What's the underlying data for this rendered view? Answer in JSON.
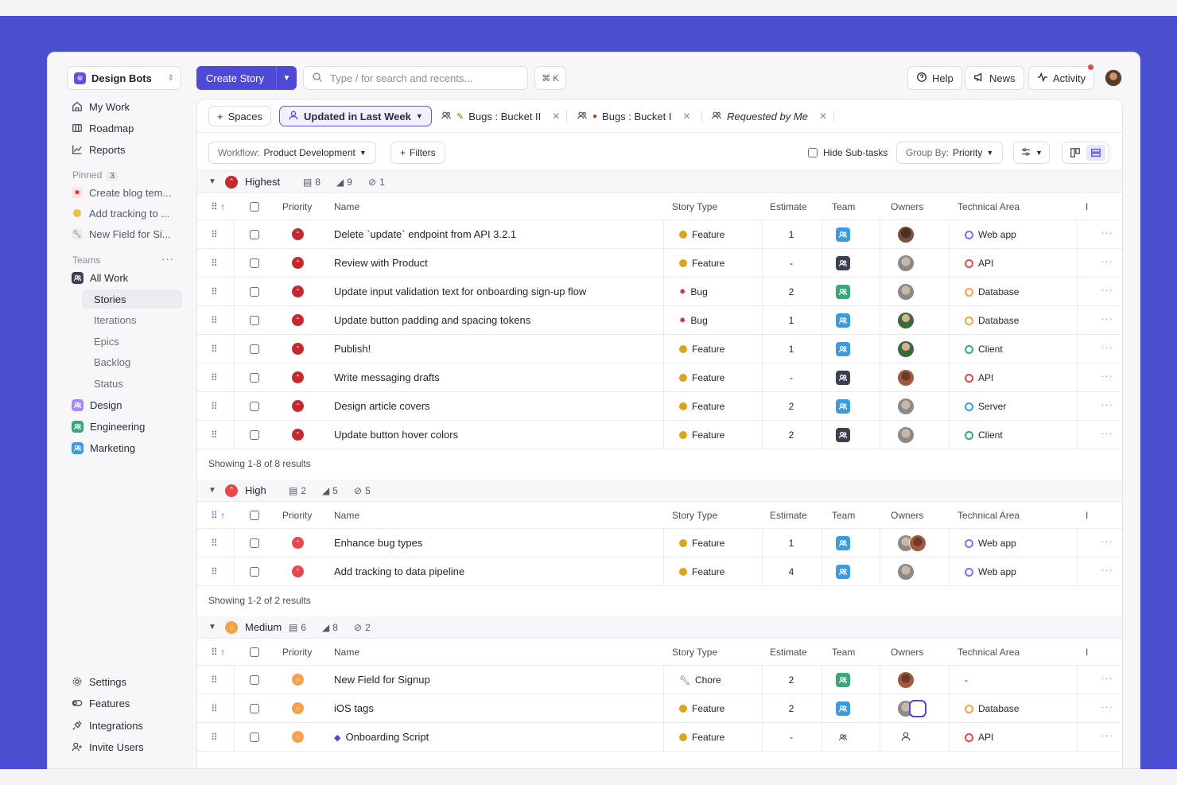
{
  "workspace": {
    "name": "Design Bots"
  },
  "nav": [
    {
      "label": "My Work",
      "icon": "home-icon"
    },
    {
      "label": "Roadmap",
      "icon": "map-icon"
    },
    {
      "label": "Reports",
      "icon": "chart-icon"
    }
  ],
  "pinned": {
    "label": "Pinned",
    "count": "3",
    "items": [
      {
        "label": "Create blog tem...",
        "icon": "bug-icon"
      },
      {
        "label": "Add tracking to ...",
        "icon": "feature-icon"
      },
      {
        "label": "New Field for Si...",
        "icon": "wrench-icon"
      }
    ]
  },
  "teams": {
    "label": "Teams",
    "all_work": "All Work",
    "sub_items": [
      "Stories",
      "Iterations",
      "Epics",
      "Backlog",
      "Status"
    ],
    "list": [
      {
        "label": "Design",
        "color": "#8a6cf0"
      },
      {
        "label": "Engineering",
        "color": "#3aa876"
      },
      {
        "label": "Marketing",
        "color": "#3b9ce0"
      }
    ]
  },
  "bottom_nav": [
    "Settings",
    "Features",
    "Integrations",
    "Invite Users"
  ],
  "topbar": {
    "create_label": "Create Story",
    "search_placeholder": "Type / for search and recents...",
    "shortcut": "⌘ K",
    "help": "Help",
    "news": "News",
    "activity": "Activity"
  },
  "tabs": {
    "spaces": "Spaces",
    "active": "Updated in Last Week",
    "others": [
      "Bugs : Bucket II",
      "Bugs : Bucket I",
      "Requested by Me"
    ]
  },
  "filters": {
    "workflow_label": "Workflow:",
    "workflow_value": "Product Development",
    "filters": "Filters",
    "hide_subtasks": "Hide Sub-tasks",
    "group_by_label": "Group By:",
    "group_by_value": "Priority"
  },
  "columns": [
    "Priority",
    "Name",
    "Story Type",
    "Estimate",
    "Team",
    "Owners",
    "Technical Area",
    "I"
  ],
  "groups": [
    {
      "title": "Highest",
      "stats": [
        "8",
        "9",
        "1"
      ],
      "showing": "Showing 1-8 of 8 results",
      "rows": [
        {
          "name": "Delete `update` endpoint from API 3.2.1",
          "type": "Feature",
          "estimate": "1",
          "area": "Web app"
        },
        {
          "name": "Review with Product",
          "type": "Feature",
          "estimate": "-",
          "area": "API"
        },
        {
          "name": "Update input validation text for onboarding sign-up flow",
          "type": "Bug",
          "estimate": "2",
          "area": "Database"
        },
        {
          "name": "Update button padding and spacing tokens",
          "type": "Bug",
          "estimate": "1",
          "area": "Database"
        },
        {
          "name": "Publish!",
          "type": "Feature",
          "estimate": "1",
          "area": "Client"
        },
        {
          "name": "Write messaging drafts",
          "type": "Feature",
          "estimate": "-",
          "area": "API"
        },
        {
          "name": "Design article covers",
          "type": "Feature",
          "estimate": "2",
          "area": "Server"
        },
        {
          "name": "Update button hover colors",
          "type": "Feature",
          "estimate": "2",
          "area": "Client"
        }
      ]
    },
    {
      "title": "High",
      "stats": [
        "2",
        "5",
        "5"
      ],
      "showing": "Showing 1-2 of 2 results",
      "rows": [
        {
          "name": "Enhance bug types",
          "type": "Feature",
          "estimate": "1",
          "area": "Web app"
        },
        {
          "name": "Add tracking to data pipeline",
          "type": "Feature",
          "estimate": "4",
          "area": "Web app"
        }
      ]
    },
    {
      "title": "Medium",
      "stats": [
        "6",
        "8",
        "2"
      ],
      "rows": [
        {
          "name": "New Field for Signup",
          "type": "Chore",
          "estimate": "2",
          "area": "-"
        },
        {
          "name": "iOS tags",
          "type": "Feature",
          "estimate": "2",
          "area": "Database"
        },
        {
          "name": "Onboarding Script",
          "type": "Feature",
          "estimate": "-",
          "area": "API"
        }
      ]
    }
  ],
  "colors": {
    "accent": "#4f49d8",
    "background_band": "#4a4fd0",
    "priority_highest": "#c5282f",
    "priority_high": "#e5484d",
    "priority_medium": "#f5a14a",
    "feature": "#d9a520",
    "bug": "#d0313c"
  }
}
